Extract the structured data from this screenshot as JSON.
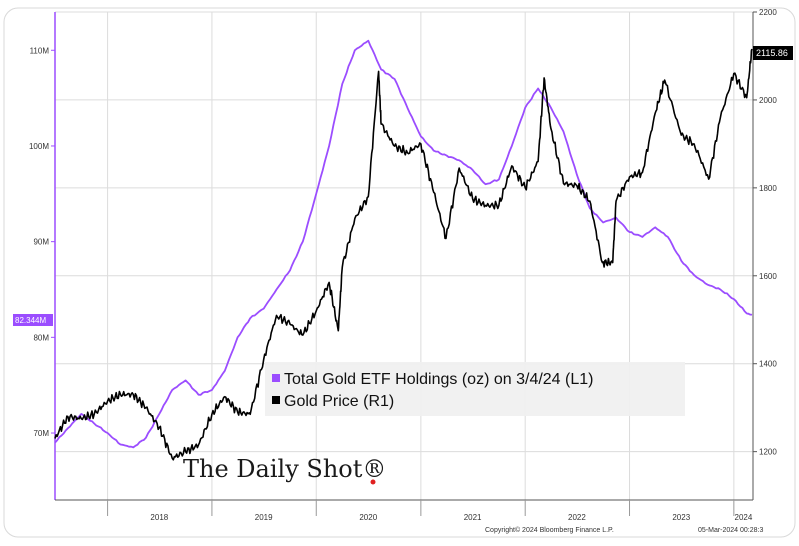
{
  "chart_data": {
    "type": "line",
    "x_range": [
      "2017-07-01",
      "2024-03-08"
    ],
    "x_tick_labels": [
      "2018",
      "2019",
      "2020",
      "2021",
      "2022",
      "2023",
      "2024"
    ],
    "left_axis": {
      "ticks": [
        "70M",
        "80M",
        "90M",
        "100M",
        "110M"
      ],
      "tick_values": [
        70,
        80,
        90,
        100,
        110
      ],
      "range": [
        63,
        114
      ],
      "unit": "M"
    },
    "right_axis": {
      "ticks": [
        "1200",
        "1400",
        "1600",
        "1800",
        "2000",
        "2200"
      ],
      "tick_values": [
        1200,
        1400,
        1600,
        1800,
        2000,
        2200
      ],
      "range": [
        1090,
        2200
      ]
    },
    "grid": true,
    "legend_position": "center",
    "series": [
      {
        "name": "Total Gold ETF Holdings (oz) on 3/4/24 (L1)",
        "axis": "left",
        "color": "#9b4dff",
        "last_value_label": "82.344M",
        "points": [
          [
            "2017-07-01",
            69.0
          ],
          [
            "2017-08-15",
            70.5
          ],
          [
            "2017-10-01",
            72.0
          ],
          [
            "2017-11-15",
            71.0
          ],
          [
            "2018-01-01",
            70.0
          ],
          [
            "2018-02-15",
            68.8
          ],
          [
            "2018-04-01",
            68.5
          ],
          [
            "2018-05-15",
            69.5
          ],
          [
            "2018-07-01",
            72.0
          ],
          [
            "2018-08-15",
            74.5
          ],
          [
            "2018-10-01",
            75.5
          ],
          [
            "2018-11-15",
            74.0
          ],
          [
            "2019-01-01",
            74.5
          ],
          [
            "2019-02-15",
            76.5
          ],
          [
            "2019-04-01",
            80.0
          ],
          [
            "2019-05-15",
            82.0
          ],
          [
            "2019-07-01",
            83.0
          ],
          [
            "2019-08-15",
            85.0
          ],
          [
            "2019-10-01",
            87.0
          ],
          [
            "2019-11-15",
            90.0
          ],
          [
            "2020-01-01",
            95.0
          ],
          [
            "2020-02-15",
            100.0
          ],
          [
            "2020-04-01",
            106.5
          ],
          [
            "2020-05-15",
            110.0
          ],
          [
            "2020-07-01",
            111.0
          ],
          [
            "2020-08-15",
            108.0
          ],
          [
            "2020-10-01",
            107.0
          ],
          [
            "2020-11-15",
            104.0
          ],
          [
            "2021-01-01",
            101.0
          ],
          [
            "2021-02-15",
            99.5
          ],
          [
            "2021-04-01",
            99.0
          ],
          [
            "2021-05-15",
            98.5
          ],
          [
            "2021-07-01",
            97.5
          ],
          [
            "2021-08-15",
            96.0
          ],
          [
            "2021-10-01",
            96.5
          ],
          [
            "2021-11-15",
            100.0
          ],
          [
            "2022-01-01",
            104.0
          ],
          [
            "2022-02-15",
            106.0
          ],
          [
            "2022-04-01",
            104.0
          ],
          [
            "2022-05-15",
            101.5
          ],
          [
            "2022-07-01",
            97.0
          ],
          [
            "2022-08-15",
            93.5
          ],
          [
            "2022-10-01",
            92.0
          ],
          [
            "2022-11-15",
            92.5
          ],
          [
            "2023-01-01",
            91.0
          ],
          [
            "2023-02-15",
            90.5
          ],
          [
            "2023-04-01",
            91.5
          ],
          [
            "2023-05-15",
            90.5
          ],
          [
            "2023-07-01",
            88.0
          ],
          [
            "2023-08-15",
            86.5
          ],
          [
            "2023-10-01",
            85.5
          ],
          [
            "2023-11-15",
            85.0
          ],
          [
            "2024-01-01",
            84.0
          ],
          [
            "2024-02-15",
            82.5
          ],
          [
            "2024-03-04",
            82.344
          ]
        ]
      },
      {
        "name": "Gold Price (R1)",
        "axis": "right",
        "color": "#000000",
        "last_value_label": "2115.86",
        "points": [
          [
            "2017-07-01",
            1230
          ],
          [
            "2017-08-15",
            1280
          ],
          [
            "2017-10-01",
            1275
          ],
          [
            "2017-11-15",
            1285
          ],
          [
            "2018-01-01",
            1315
          ],
          [
            "2018-02-15",
            1330
          ],
          [
            "2018-04-01",
            1330
          ],
          [
            "2018-05-15",
            1300
          ],
          [
            "2018-07-01",
            1255
          ],
          [
            "2018-08-15",
            1185
          ],
          [
            "2018-10-01",
            1200
          ],
          [
            "2018-11-15",
            1215
          ],
          [
            "2019-01-01",
            1285
          ],
          [
            "2019-02-15",
            1325
          ],
          [
            "2019-04-01",
            1290
          ],
          [
            "2019-05-15",
            1285
          ],
          [
            "2019-07-01",
            1410
          ],
          [
            "2019-08-15",
            1510
          ],
          [
            "2019-10-01",
            1490
          ],
          [
            "2019-11-15",
            1465
          ],
          [
            "2020-01-01",
            1520
          ],
          [
            "2020-02-15",
            1585
          ],
          [
            "2020-03-18",
            1475
          ],
          [
            "2020-04-01",
            1620
          ],
          [
            "2020-05-15",
            1730
          ],
          [
            "2020-07-01",
            1780
          ],
          [
            "2020-08-06",
            2065
          ],
          [
            "2020-08-15",
            1945
          ],
          [
            "2020-10-01",
            1895
          ],
          [
            "2020-11-15",
            1880
          ],
          [
            "2021-01-01",
            1900
          ],
          [
            "2021-02-15",
            1790
          ],
          [
            "2021-03-30",
            1685
          ],
          [
            "2021-05-15",
            1845
          ],
          [
            "2021-07-01",
            1775
          ],
          [
            "2021-08-15",
            1760
          ],
          [
            "2021-10-01",
            1760
          ],
          [
            "2021-11-15",
            1850
          ],
          [
            "2022-01-01",
            1800
          ],
          [
            "2022-02-15",
            1860
          ],
          [
            "2022-03-08",
            2050
          ],
          [
            "2022-04-01",
            1935
          ],
          [
            "2022-05-15",
            1810
          ],
          [
            "2022-07-01",
            1805
          ],
          [
            "2022-08-15",
            1770
          ],
          [
            "2022-09-28",
            1630
          ],
          [
            "2022-11-03",
            1630
          ],
          [
            "2022-11-15",
            1770
          ],
          [
            "2023-01-01",
            1825
          ],
          [
            "2023-02-15",
            1835
          ],
          [
            "2023-04-01",
            1970
          ],
          [
            "2023-05-04",
            2045
          ],
          [
            "2023-07-01",
            1920
          ],
          [
            "2023-08-15",
            1900
          ],
          [
            "2023-10-05",
            1820
          ],
          [
            "2023-11-15",
            1960
          ],
          [
            "2024-01-01",
            2060
          ],
          [
            "2024-02-15",
            2005
          ],
          [
            "2024-03-04",
            2115.86
          ]
        ]
      }
    ],
    "annotations": {
      "copyright": "Copyright© 2024 Bloomberg Finance L.P.",
      "date_stamp": "05-Mar-2024 00:28:3"
    },
    "watermark": "The Daily Shot®"
  }
}
